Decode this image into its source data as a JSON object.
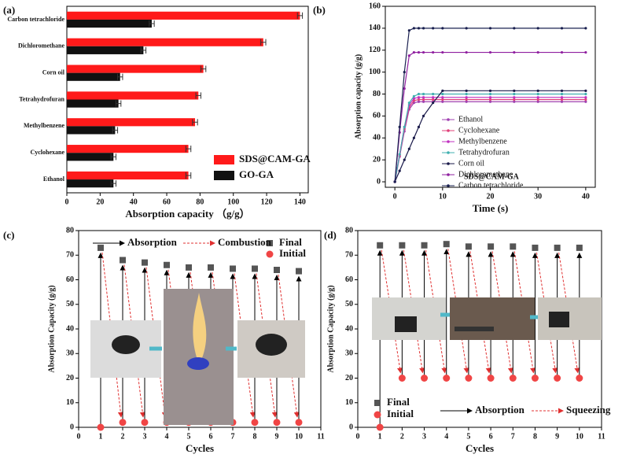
{
  "chart_data": [
    {
      "type": "bar",
      "orientation": "horizontal",
      "label": "(a)",
      "xlabel": "Absorption capacity （g/g）",
      "categories": [
        "Carbon tetrachloride",
        "Dichloromethane",
        "Corn oil",
        "Tetrahydrofuran",
        "Methylbenzene",
        "Cyclohexane",
        "Ethanol"
      ],
      "series": [
        {
          "name": "SDS@CAM-GA",
          "color": "#ff1a1a",
          "values": [
            140,
            118,
            82,
            79,
            77,
            73,
            73
          ],
          "errors": [
            1.5,
            1.5,
            1.5,
            1.5,
            1.5,
            1.5,
            1.5
          ]
        },
        {
          "name": "GO-GA",
          "color": "#111111",
          "values": [
            51,
            46,
            32,
            31,
            29,
            28,
            28
          ],
          "errors": [
            1.5,
            1.5,
            1.5,
            1.5,
            1.5,
            1.5,
            1.5
          ]
        }
      ],
      "xlim": [
        0,
        145
      ],
      "xticks": [
        0,
        20,
        40,
        60,
        80,
        100,
        120,
        140
      ],
      "legend": "lower right"
    },
    {
      "type": "line",
      "label": "(b)",
      "xlabel": "Time (s)",
      "ylabel": "Absorption capacity (g/g)",
      "annotation": "SDS@CAM-GA",
      "x": [
        0,
        1,
        2,
        3,
        4,
        5,
        6,
        8,
        10,
        15,
        20,
        25,
        30,
        35,
        40
      ],
      "series": [
        {
          "name": "Ethanol",
          "color": "#a040b0",
          "values": [
            0,
            23,
            46,
            66,
            72,
            73,
            73,
            73,
            73,
            73,
            73,
            73,
            73,
            73,
            73
          ]
        },
        {
          "name": "Cyclohexane",
          "color": "#e0407a",
          "values": [
            0,
            24,
            48,
            68,
            74,
            75,
            75,
            75,
            75,
            75,
            75,
            75,
            75,
            75,
            75
          ]
        },
        {
          "name": "Methylbenzene",
          "color": "#c030c0",
          "values": [
            0,
            25,
            50,
            70,
            76,
            77,
            77,
            77,
            77,
            77,
            77,
            77,
            77,
            77,
            77
          ]
        },
        {
          "name": "Tetrahydrofuran",
          "color": "#40b0b0",
          "values": [
            0,
            25,
            50,
            72,
            78,
            80,
            80,
            80,
            80,
            80,
            80,
            80,
            80,
            80,
            80
          ]
        },
        {
          "name": "Corn oil",
          "color": "#1a1a4a",
          "values": [
            0,
            10,
            20,
            30,
            40,
            50,
            60,
            72,
            83,
            83,
            83,
            83,
            83,
            83,
            83
          ]
        },
        {
          "name": "Dichloromethane",
          "color": "#9020a0",
          "values": [
            0,
            45,
            85,
            115,
            118,
            118,
            118,
            118,
            118,
            118,
            118,
            118,
            118,
            118,
            118
          ]
        },
        {
          "name": "Carbon tetrachloride",
          "color": "#1a2050",
          "values": [
            0,
            50,
            100,
            138,
            140,
            140,
            140,
            140,
            140,
            140,
            140,
            140,
            140,
            140,
            140
          ]
        }
      ],
      "xlim": [
        -2,
        42
      ],
      "xticks": [
        0,
        10,
        20,
        30,
        40
      ],
      "ylim": [
        -5,
        160
      ],
      "yticks": [
        0,
        20,
        40,
        60,
        80,
        100,
        120,
        140,
        160
      ]
    },
    {
      "type": "scatter",
      "label": "(c)",
      "xlabel": "Cycles",
      "ylabel": "Absorption Capacity (g/g)",
      "x": [
        1,
        2,
        3,
        4,
        5,
        6,
        7,
        8,
        9,
        10
      ],
      "series": [
        {
          "name": "Final",
          "color": "#555555",
          "values": [
            73,
            68,
            67,
            66,
            65,
            65,
            64.5,
            64.5,
            64,
            63.5
          ]
        },
        {
          "name": "Initial",
          "color": "#f04545",
          "values": [
            0,
            2,
            2,
            2,
            2,
            2,
            2,
            2,
            2,
            2
          ]
        }
      ],
      "arrows": [
        {
          "name": "Absorption",
          "color": "#000000"
        },
        {
          "name": "Combustion",
          "color": "#e03030"
        }
      ],
      "xlim": [
        0,
        11
      ],
      "xticks": [
        0,
        1,
        2,
        3,
        4,
        5,
        6,
        7,
        8,
        9,
        10,
        11
      ],
      "ylim": [
        0,
        80
      ],
      "yticks": [
        0,
        10,
        20,
        30,
        40,
        50,
        60,
        70,
        80
      ]
    },
    {
      "type": "scatter",
      "label": "(d)",
      "xlabel": "Cycles",
      "ylabel": "Absorption Capacity (g/g)",
      "x": [
        1,
        2,
        3,
        4,
        5,
        6,
        7,
        8,
        9,
        10
      ],
      "series": [
        {
          "name": "Final",
          "color": "#555555",
          "values": [
            74,
            74,
            74,
            74.5,
            73.5,
            73.5,
            73.5,
            73,
            73,
            73
          ]
        },
        {
          "name": "Initial",
          "color": "#f04545",
          "values": [
            0,
            20,
            20,
            20,
            20,
            20,
            20,
            20,
            20,
            20
          ]
        }
      ],
      "arrows": [
        {
          "name": "Absorption",
          "color": "#000000"
        },
        {
          "name": "Squeezing",
          "color": "#e03030"
        }
      ],
      "xlim": [
        0,
        11
      ],
      "xticks": [
        0,
        1,
        2,
        3,
        4,
        5,
        6,
        7,
        8,
        9,
        10,
        11
      ],
      "ylim": [
        0,
        80
      ],
      "yticks": [
        0,
        10,
        20,
        30,
        40,
        50,
        60,
        70,
        80
      ]
    }
  ]
}
